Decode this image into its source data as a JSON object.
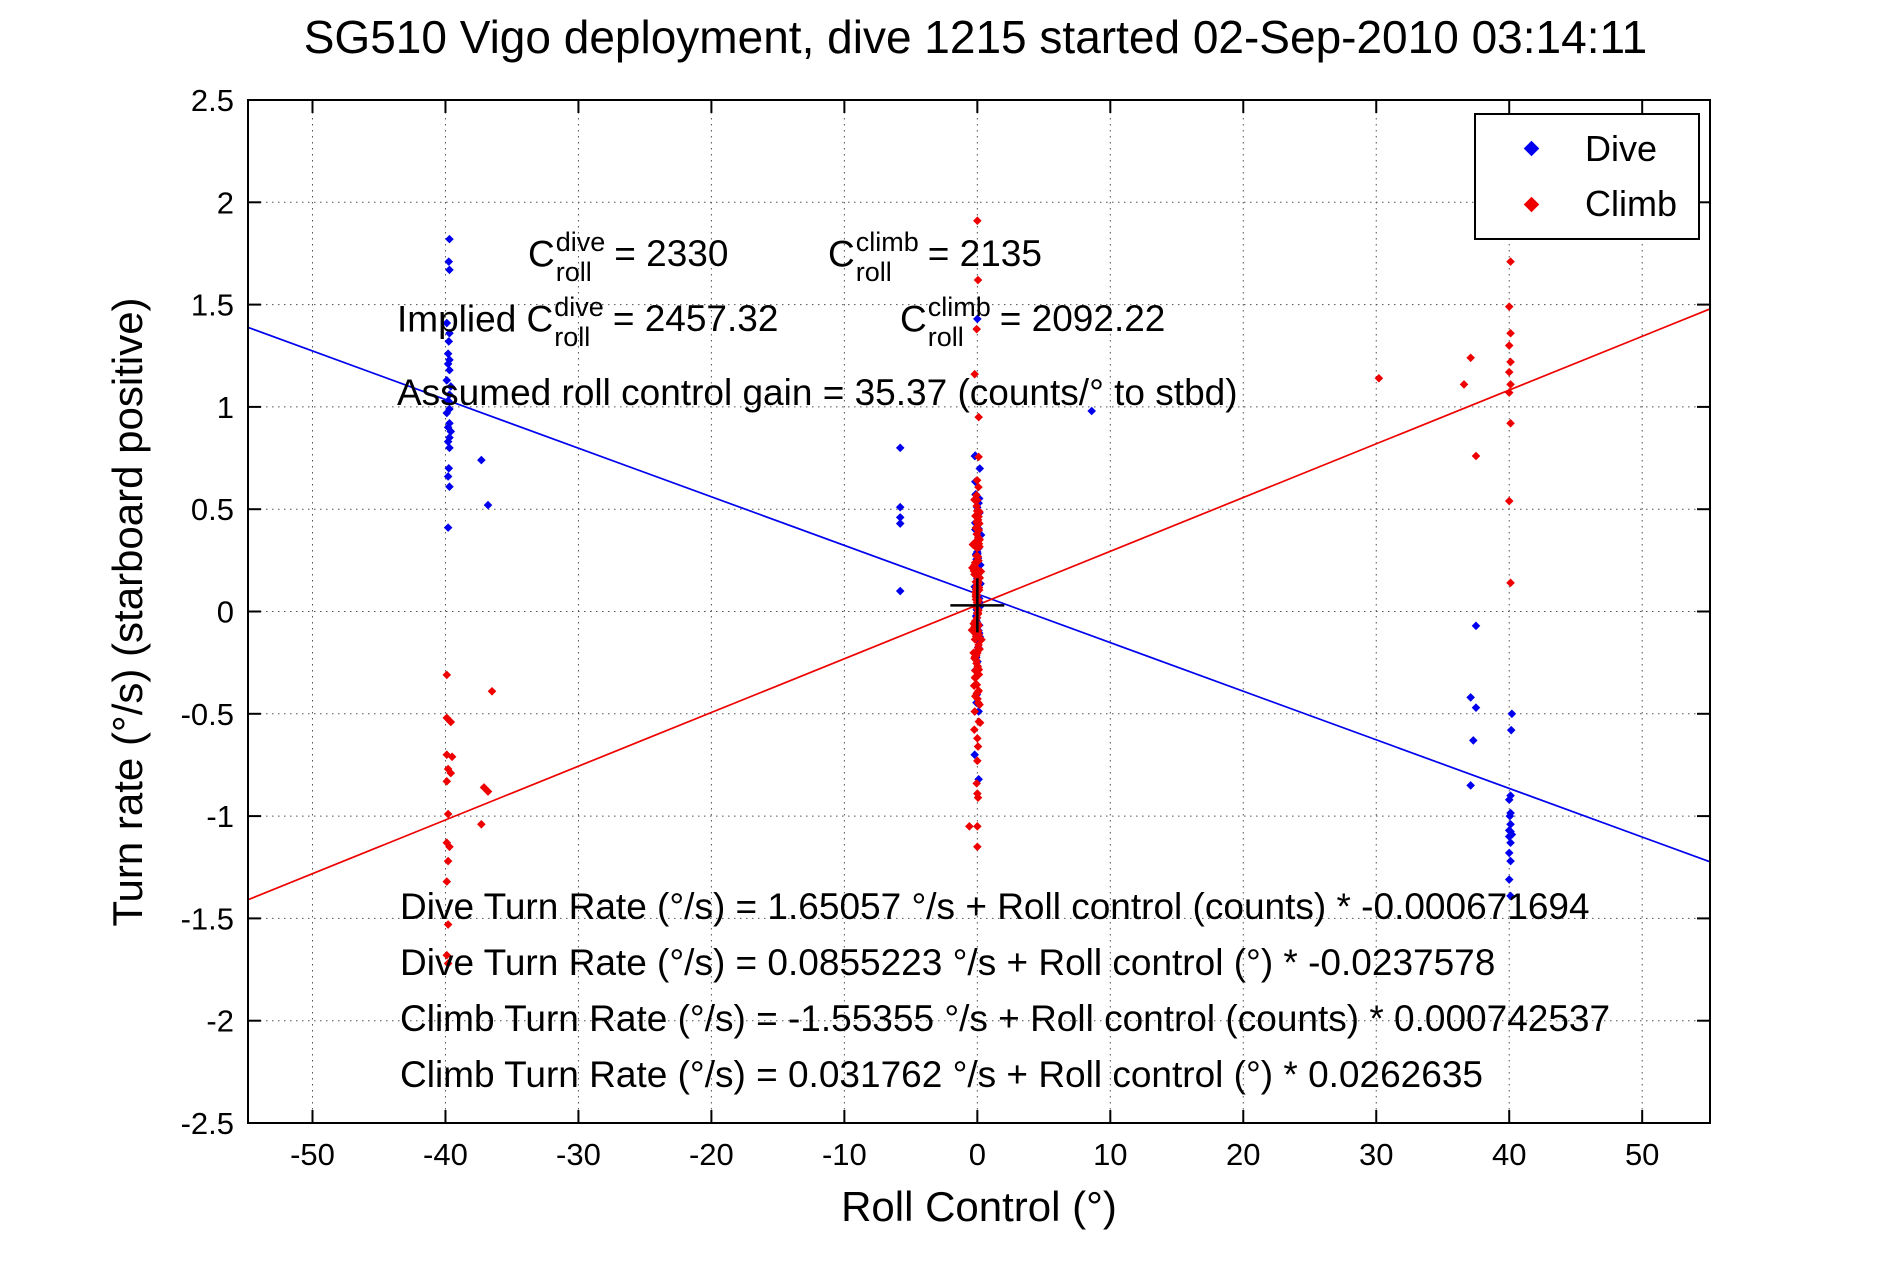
{
  "title": "SG510 Vigo deployment, dive 1215 started 02-Sep-2010 03:14:11",
  "annotations": {
    "c_dive": {
      "base": "C",
      "sup": "dive",
      "sub": "roll",
      "value": "= 2330"
    },
    "c_climb": {
      "base": "C",
      "sup": "climb",
      "sub": "roll",
      "value": "= 2135"
    },
    "implied_dive": {
      "base": "Implied C",
      "sup": "dive",
      "sub": "roll",
      "value": "= 2457.32"
    },
    "implied_climb": {
      "base": "C",
      "sup": "climb",
      "sub": "roll",
      "value": "= 2092.22"
    },
    "gain_line": "Assumed roll control gain = 35.37 (counts/° to stbd)",
    "equations": [
      "Dive Turn Rate (°/s) = 1.65057 °/s + Roll control (counts) * -0.000671694",
      "Dive Turn Rate (°/s) = 0.0855223 °/s + Roll control (°) * -0.0237578",
      "Climb Turn Rate (°/s) = -1.55355 °/s + Roll control (counts) * 0.000742537",
      "Climb Turn Rate (°/s) = 0.031762 °/s + Roll control (°) * 0.0262635"
    ]
  },
  "chart_data": {
    "type": "scatter",
    "title": "SG510 Vigo deployment, dive 1215 started 02-Sep-2010 03:14:11",
    "xlabel": "Roll Control (°)",
    "ylabel": "Turn rate (°/s) (starboard positive)",
    "xlim": [
      -54.85,
      55.1
    ],
    "ylim": [
      -2.5,
      2.5
    ],
    "xticks": [
      -50,
      -40,
      -30,
      -20,
      -10,
      0,
      10,
      20,
      30,
      40,
      50
    ],
    "yticks": [
      -2.5,
      -2,
      -1.5,
      -1,
      -0.5,
      0,
      0.5,
      1,
      1.5,
      2,
      2.5
    ],
    "grid": true,
    "frame_color": "#000000",
    "grid_color": "#333333",
    "legend": {
      "position": "top-right",
      "entries": [
        {
          "label": "Dive",
          "color": "#0000ee"
        },
        {
          "label": "Climb",
          "color": "#ee0000"
        }
      ]
    },
    "fit_lines": [
      {
        "name": "dive-fit",
        "color": "#0000ee",
        "intercept": 0.0855223,
        "slope": -0.0237578
      },
      {
        "name": "climb-fit",
        "color": "#ee0000",
        "intercept": 0.031762,
        "slope": 0.0262635
      }
    ],
    "center_marker": {
      "x": 0,
      "y": 0.03,
      "type": "plus",
      "color": "#000000",
      "arm": 27
    },
    "series": [
      {
        "name": "Dive",
        "color": "#0000ee",
        "marker": "diamond",
        "points": [
          [
            -39.7,
            1.82
          ],
          [
            -39.75,
            1.71
          ],
          [
            -39.7,
            1.67
          ],
          [
            -39.9,
            1.41
          ],
          [
            -39.7,
            1.36
          ],
          [
            -39.75,
            1.32
          ],
          [
            -39.8,
            1.26
          ],
          [
            -39.7,
            1.23
          ],
          [
            -39.8,
            1.21
          ],
          [
            -39.7,
            1.18
          ],
          [
            -39.9,
            1.13
          ],
          [
            -39.6,
            1.1
          ],
          [
            -39.7,
            1.06
          ],
          [
            -39.8,
            1.03
          ],
          [
            -39.7,
            0.99
          ],
          [
            -39.9,
            0.97
          ],
          [
            -39.7,
            0.92
          ],
          [
            -39.8,
            0.9
          ],
          [
            -39.6,
            0.88
          ],
          [
            -39.7,
            0.85
          ],
          [
            -39.8,
            0.83
          ],
          [
            -39.7,
            0.8
          ],
          [
            -39.75,
            0.7
          ],
          [
            -39.8,
            0.66
          ],
          [
            -39.7,
            0.61
          ],
          [
            -39.8,
            0.41
          ],
          [
            -37.3,
            0.74
          ],
          [
            -36.8,
            0.52
          ],
          [
            -5.8,
            0.8
          ],
          [
            -5.8,
            0.51
          ],
          [
            -5.8,
            0.46
          ],
          [
            -5.8,
            0.43
          ],
          [
            -5.8,
            0.1
          ],
          [
            8.6,
            0.98
          ],
          [
            0.0,
            1.43
          ],
          [
            -0.2,
            -0.7
          ],
          [
            0.1,
            -0.82
          ],
          [
            37.5,
            -0.07
          ],
          [
            37.1,
            -0.42
          ],
          [
            37.5,
            -0.47
          ],
          [
            40.2,
            -0.5
          ],
          [
            40.15,
            -0.58
          ],
          [
            37.3,
            -0.63
          ],
          [
            37.1,
            -0.85
          ],
          [
            40.1,
            -0.9
          ],
          [
            40.0,
            -0.92
          ],
          [
            40.1,
            -0.985
          ],
          [
            40.05,
            -1.0
          ],
          [
            40.1,
            -1.04
          ],
          [
            40.0,
            -1.07
          ],
          [
            40.1,
            -1.075
          ],
          [
            40.2,
            -1.09
          ],
          [
            40.0,
            -1.1
          ],
          [
            40.1,
            -1.13
          ],
          [
            40.0,
            -1.18
          ],
          [
            40.1,
            -1.22
          ],
          [
            40.0,
            -1.31
          ],
          [
            40.1,
            -1.39
          ]
        ],
        "clusters": [
          {
            "cx": 0,
            "sx": 0.12,
            "cy": 0.15,
            "sy": 0.27,
            "n": 72,
            "xmax": 0.4,
            "ymin": -0.58,
            "ymax": 0.83,
            "seed": 11
          }
        ]
      },
      {
        "name": "Climb",
        "color": "#ee0000",
        "marker": "diamond",
        "points": [
          [
            -39.9,
            -0.31
          ],
          [
            -36.5,
            -0.39
          ],
          [
            -39.9,
            -0.52
          ],
          [
            -39.6,
            -0.54
          ],
          [
            -39.9,
            -0.7
          ],
          [
            -39.5,
            -0.71
          ],
          [
            -39.8,
            -0.77
          ],
          [
            -39.6,
            -0.79
          ],
          [
            -39.9,
            -0.83
          ],
          [
            -37.1,
            -0.86
          ],
          [
            -36.8,
            -0.88
          ],
          [
            -39.8,
            -0.99
          ],
          [
            -37.3,
            -1.04
          ],
          [
            -39.9,
            -1.13
          ],
          [
            -39.7,
            -1.15
          ],
          [
            -39.8,
            -1.22
          ],
          [
            -39.9,
            -1.32
          ],
          [
            -39.8,
            -1.53
          ],
          [
            -39.9,
            -1.68
          ],
          [
            -39.8,
            -1.72
          ],
          [
            30.2,
            1.14
          ],
          [
            37.1,
            1.24
          ],
          [
            36.6,
            1.11
          ],
          [
            37.5,
            0.76
          ],
          [
            40.1,
            1.71
          ],
          [
            40.0,
            1.49
          ],
          [
            40.1,
            1.36
          ],
          [
            40.0,
            1.3
          ],
          [
            40.1,
            1.22
          ],
          [
            40.0,
            1.17
          ],
          [
            40.1,
            1.11
          ],
          [
            40.0,
            1.07
          ],
          [
            40.1,
            0.92
          ],
          [
            40.0,
            0.54
          ],
          [
            40.1,
            0.14
          ],
          [
            0.0,
            1.91
          ],
          [
            0.05,
            1.62
          ],
          [
            -0.05,
            1.38
          ],
          [
            -0.2,
            1.16
          ],
          [
            0.1,
            0.95
          ],
          [
            0.0,
            -0.62
          ],
          [
            0.05,
            -0.66
          ],
          [
            0.0,
            -0.73
          ],
          [
            -0.05,
            -0.84
          ],
          [
            0.0,
            -0.89
          ],
          [
            0.05,
            -0.91
          ],
          [
            0.0,
            -1.05
          ],
          [
            -0.6,
            -1.05
          ],
          [
            0.0,
            -1.15
          ]
        ],
        "clusters": [
          {
            "cx": 0,
            "sx": 0.14,
            "cy": 0.03,
            "sy": 0.33,
            "n": 140,
            "xmax": 0.45,
            "ymin": -0.6,
            "ymax": 0.84,
            "seed": 3
          }
        ]
      }
    ]
  }
}
